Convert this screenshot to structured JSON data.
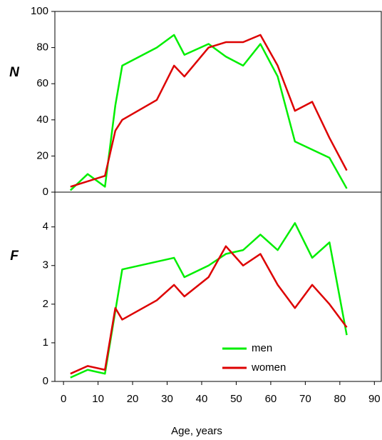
{
  "chart_data": [
    {
      "type": "line",
      "ylabel": "N",
      "xlim": [
        -2.5,
        92
      ],
      "ylim": [
        0,
        100
      ],
      "yticks": [
        0,
        20,
        40,
        60,
        80,
        100
      ],
      "series": [
        {
          "color": "#00ee00",
          "x": [
            2,
            7,
            12,
            15,
            17,
            27,
            32,
            35,
            42,
            47,
            52,
            57,
            62,
            67,
            77,
            82
          ],
          "values": [
            1,
            10,
            3,
            48,
            70,
            80,
            87,
            76,
            82,
            75,
            70,
            82,
            64,
            28,
            19,
            2
          ]
        },
        {
          "color": "#dd0000",
          "x": [
            2,
            12,
            15,
            17,
            27,
            32,
            35,
            42,
            47,
            52,
            57,
            62,
            67,
            72,
            77,
            82
          ],
          "values": [
            3,
            9,
            34,
            40,
            51,
            70,
            64,
            80,
            83,
            83,
            87,
            70,
            45,
            50,
            30,
            12
          ]
        }
      ]
    },
    {
      "type": "line",
      "ylabel": "F",
      "xlabel": "Age, years",
      "xlim": [
        -2.5,
        92
      ],
      "xticks": [
        0,
        10,
        20,
        30,
        40,
        50,
        60,
        70,
        80,
        90
      ],
      "ylim": [
        0,
        4.9
      ],
      "yticks": [
        0,
        1,
        2,
        3,
        4
      ],
      "series": [
        {
          "name": "men",
          "color": "#00ee00",
          "x": [
            2,
            7,
            12,
            17,
            32,
            35,
            42,
            47,
            52,
            57,
            62,
            67,
            72,
            77,
            82
          ],
          "values": [
            0.1,
            0.3,
            0.2,
            2.9,
            3.2,
            2.7,
            3.0,
            3.3,
            3.4,
            3.8,
            3.4,
            4.1,
            3.2,
            3.6,
            1.2
          ]
        },
        {
          "name": "women",
          "color": "#dd0000",
          "x": [
            2,
            7,
            12,
            15,
            17,
            27,
            32,
            35,
            42,
            47,
            52,
            57,
            62,
            67,
            72,
            77,
            82
          ],
          "values": [
            0.2,
            0.4,
            0.3,
            1.9,
            1.6,
            2.1,
            2.5,
            2.2,
            2.7,
            3.5,
            3.0,
            3.3,
            2.5,
            1.9,
            2.5,
            2.0,
            1.4
          ]
        }
      ]
    }
  ]
}
